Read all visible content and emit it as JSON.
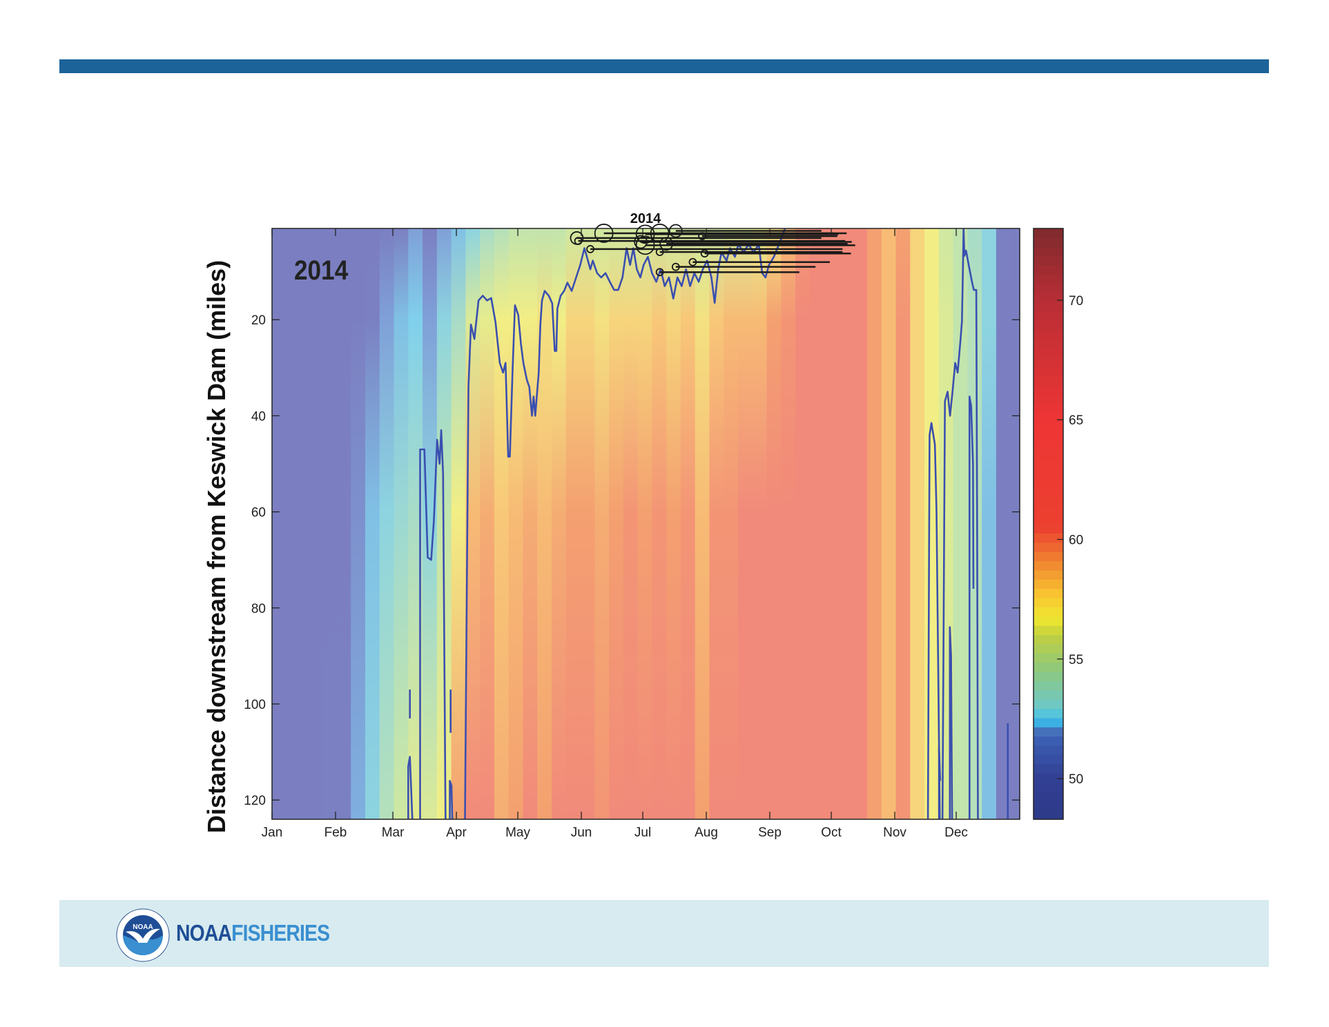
{
  "header": {
    "bar_color": "#1c6399"
  },
  "chart_data": {
    "type": "heatmap",
    "title": "2014",
    "annotation": "2014",
    "ylabel": "Distance downstream from Keswick Dam (miles)",
    "xlabel": "",
    "xlim": [
      0,
      365
    ],
    "ylim": [
      1,
      124
    ],
    "y_reversed": true,
    "x_ticks": [
      {
        "day": 0,
        "label": "Jan"
      },
      {
        "day": 31,
        "label": "Feb"
      },
      {
        "day": 59,
        "label": "Mar"
      },
      {
        "day": 90,
        "label": "Apr"
      },
      {
        "day": 120,
        "label": "May"
      },
      {
        "day": 151,
        "label": "Jun"
      },
      {
        "day": 181,
        "label": "Jul"
      },
      {
        "day": 212,
        "label": "Aug"
      },
      {
        "day": 243,
        "label": "Sep"
      },
      {
        "day": 273,
        "label": "Oct"
      },
      {
        "day": 304,
        "label": "Nov"
      },
      {
        "day": 334,
        "label": "Dec"
      }
    ],
    "y_ticks": [
      {
        "value": 20,
        "label": "20"
      },
      {
        "value": 40,
        "label": "40"
      },
      {
        "value": 60,
        "label": "60"
      },
      {
        "value": 80,
        "label": "80"
      },
      {
        "value": 100,
        "label": "100"
      },
      {
        "value": 120,
        "label": "120"
      }
    ],
    "colorbar": {
      "range": [
        48.3,
        73
      ],
      "ticks": [
        {
          "value": 50,
          "label": "50"
        },
        {
          "value": 55,
          "label": "55"
        },
        {
          "value": 60,
          "label": "60"
        },
        {
          "value": 65,
          "label": "65"
        },
        {
          "value": 70,
          "label": "70"
        }
      ]
    },
    "heatmap": {
      "distances": [
        1,
        20,
        60,
        124
      ],
      "days": [
        0,
        7,
        14,
        21,
        28,
        35,
        42,
        49,
        56,
        63,
        70,
        77,
        84,
        91,
        98,
        105,
        112,
        119,
        126,
        133,
        140,
        147,
        154,
        161,
        168,
        175,
        182,
        189,
        196,
        203,
        210,
        217,
        224,
        231,
        238,
        245,
        252,
        259,
        266,
        273,
        280,
        287,
        294,
        301,
        308,
        315,
        322,
        329,
        336,
        343,
        350,
        357,
        364
      ],
      "values": [
        [
          49,
          49,
          49,
          49
        ],
        [
          49,
          49,
          49,
          49.2
        ],
        [
          49,
          49,
          49,
          49.3
        ],
        [
          49,
          49,
          49,
          49.5
        ],
        [
          49,
          49,
          49.3,
          50
        ],
        [
          49,
          49,
          49.5,
          49.8
        ],
        [
          49,
          49.3,
          50.5,
          51.5
        ],
        [
          49.2,
          50,
          52,
          53
        ],
        [
          49.5,
          51,
          53,
          54.5
        ],
        [
          50,
          52,
          53.5,
          55.5
        ],
        [
          51,
          52.5,
          54,
          56.5
        ],
        [
          50,
          51,
          53,
          56
        ],
        [
          51,
          53,
          55,
          57
        ],
        [
          52,
          54,
          57,
          60
        ],
        [
          53,
          56,
          59,
          61
        ],
        [
          54,
          56.5,
          59.5,
          61
        ],
        [
          54.5,
          57,
          58.5,
          59.5
        ],
        [
          55,
          57,
          59,
          60
        ],
        [
          55,
          57,
          59.5,
          61
        ],
        [
          55,
          57.5,
          59,
          60
        ],
        [
          55,
          57,
          59.5,
          61
        ],
        [
          55.5,
          58,
          60,
          61
        ],
        [
          55.5,
          58,
          60,
          61
        ],
        [
          55.5,
          57.5,
          59.5,
          60.5
        ],
        [
          55.5,
          58,
          60,
          61
        ],
        [
          55.5,
          58,
          60.5,
          61
        ],
        [
          55.5,
          58,
          60,
          61
        ],
        [
          55.5,
          58.5,
          60.5,
          61
        ],
        [
          55.5,
          58,
          60,
          61
        ],
        [
          55.5,
          58.5,
          60.5,
          61
        ],
        [
          55.5,
          57.5,
          59,
          60
        ],
        [
          55.5,
          58.5,
          60.5,
          61
        ],
        [
          56,
          59,
          60.5,
          61
        ],
        [
          56,
          59,
          61,
          61
        ],
        [
          56.5,
          59,
          61,
          61
        ],
        [
          57.5,
          60,
          61,
          61
        ],
        [
          59,
          60.5,
          61,
          61
        ],
        [
          60.5,
          61,
          61,
          61
        ],
        [
          61,
          61,
          61,
          61
        ],
        [
          61,
          61,
          61,
          61
        ],
        [
          61,
          61,
          61,
          61
        ],
        [
          61,
          61,
          61,
          61
        ],
        [
          60,
          60,
          60,
          60
        ],
        [
          59,
          59,
          59,
          59
        ],
        [
          60,
          60.5,
          60.5,
          60.5
        ],
        [
          58,
          58,
          58,
          58
        ],
        [
          57,
          57,
          57,
          57
        ],
        [
          55.5,
          56,
          56,
          56
        ],
        [
          55,
          55,
          55,
          55
        ],
        [
          54,
          54.5,
          54.5,
          54.5
        ],
        [
          53,
          53,
          52,
          52
        ],
        [
          50,
          49.5,
          49.5,
          49.5
        ],
        [
          49,
          49,
          49,
          49
        ]
      ]
    },
    "contour_color": "#3a4fb0",
    "contour_segments": [
      [
        [
          72.3,
          124
        ],
        [
          72.3,
          47
        ],
        [
          74.4,
          47
        ],
        [
          76.0,
          69.5
        ],
        [
          77.7,
          70
        ],
        [
          79,
          62
        ],
        [
          80.6,
          45
        ],
        [
          81.8,
          50
        ],
        [
          82.6,
          43
        ],
        [
          83.5,
          52
        ],
        [
          84.7,
          124
        ]
      ],
      [
        [
          94.2,
          124
        ],
        [
          95.9,
          34
        ],
        [
          97.1,
          21
        ],
        [
          98.8,
          24
        ],
        [
          100.8,
          16
        ],
        [
          102.9,
          15
        ],
        [
          105,
          16
        ],
        [
          107,
          15.5
        ],
        [
          109.1,
          20.5
        ],
        [
          111.2,
          29
        ],
        [
          112.8,
          31
        ],
        [
          114,
          29
        ],
        [
          115.3,
          48.5
        ],
        [
          116.1,
          48.5
        ],
        [
          117.4,
          31
        ],
        [
          118.6,
          17
        ],
        [
          120.2,
          19
        ],
        [
          121.5,
          25
        ],
        [
          122.7,
          29
        ],
        [
          124.4,
          32.5
        ],
        [
          125.6,
          34
        ],
        [
          126.9,
          40
        ],
        [
          127.7,
          36
        ],
        [
          128.5,
          40
        ],
        [
          130.2,
          31
        ],
        [
          131,
          21
        ],
        [
          131.8,
          16
        ],
        [
          133.1,
          14
        ],
        [
          135.1,
          15
        ],
        [
          136.8,
          16.6
        ],
        [
          138,
          26.5
        ],
        [
          138.8,
          26.5
        ],
        [
          139.3,
          17.7
        ],
        [
          140.9,
          15
        ],
        [
          142.6,
          14
        ],
        [
          144.2,
          12.3
        ],
        [
          146.3,
          14
        ],
        [
          148.3,
          11.4
        ],
        [
          150.4,
          8.7
        ],
        [
          152.5,
          5.1
        ],
        [
          153.7,
          6.9
        ],
        [
          155.4,
          9.5
        ],
        [
          156.6,
          7.7
        ],
        [
          158.7,
          10.3
        ],
        [
          160.7,
          11.2
        ],
        [
          162.8,
          10.3
        ],
        [
          164.9,
          12.1
        ],
        [
          167,
          13.8
        ],
        [
          169,
          13.8
        ],
        [
          171.1,
          11.2
        ],
        [
          173.1,
          5.1
        ],
        [
          174.8,
          8.6
        ],
        [
          176.4,
          5.1
        ],
        [
          178.1,
          9.5
        ],
        [
          179.8,
          11.2
        ],
        [
          181.4,
          8.6
        ],
        [
          183.5,
          6.9
        ],
        [
          185.5,
          10.3
        ],
        [
          187.6,
          12.1
        ],
        [
          189.7,
          9.5
        ],
        [
          191.7,
          13
        ],
        [
          193.8,
          11.2
        ],
        [
          195.9,
          15.6
        ],
        [
          197.9,
          11.2
        ],
        [
          200,
          13
        ],
        [
          202.1,
          9.5
        ],
        [
          204.1,
          13
        ],
        [
          206.2,
          10.3
        ],
        [
          208.3,
          12.1
        ],
        [
          210.3,
          9.5
        ],
        [
          212.4,
          7.7
        ],
        [
          214.5,
          11.2
        ],
        [
          216.1,
          16.5
        ],
        [
          217.8,
          9.5
        ],
        [
          219.4,
          6
        ],
        [
          221.9,
          7.7
        ],
        [
          223.6,
          5.1
        ],
        [
          226,
          6.9
        ],
        [
          227.7,
          4.3
        ],
        [
          230.2,
          6
        ],
        [
          232.6,
          4.3
        ],
        [
          235.1,
          6
        ],
        [
          237.6,
          4.3
        ],
        [
          239.3,
          10.3
        ],
        [
          240.9,
          11.2
        ],
        [
          242.6,
          8.6
        ],
        [
          245,
          6.9
        ],
        [
          247.5,
          4.3
        ],
        [
          249.2,
          2.5
        ],
        [
          250.4,
          1
        ]
      ],
      [
        [
          320.2,
          124
        ],
        [
          321,
          44
        ],
        [
          321.9,
          41.5
        ],
        [
          323.6,
          46
        ],
        [
          324.4,
          60
        ],
        [
          326,
          124
        ]
      ],
      [
        [
          327.3,
          124
        ],
        [
          328.5,
          37
        ],
        [
          329.8,
          35
        ],
        [
          331,
          40
        ],
        [
          332.2,
          35
        ],
        [
          333.5,
          29
        ],
        [
          334.7,
          31
        ],
        [
          336,
          24.7
        ],
        [
          336.8,
          20.4
        ],
        [
          337.2,
          11.6
        ],
        [
          337.6,
          1
        ]
      ],
      [
        [
          337.6,
          1
        ],
        [
          338,
          6.7
        ],
        [
          338.8,
          5.6
        ],
        [
          340.1,
          8.6
        ],
        [
          341.7,
          12.1
        ],
        [
          342.6,
          13.8
        ],
        [
          343.8,
          13.8
        ],
        [
          344.2,
          60
        ],
        [
          344.6,
          124
        ]
      ],
      [
        [
          340.5,
          124
        ],
        [
          340.5,
          36
        ],
        [
          341.3,
          38
        ],
        [
          342.2,
          50
        ],
        [
          342.4,
          76
        ]
      ],
      [
        [
          66.5,
          124
        ],
        [
          66.5,
          113
        ],
        [
          67.3,
          111
        ],
        [
          68.5,
          124
        ]
      ],
      [
        [
          67.3,
          97
        ],
        [
          67.3,
          103
        ]
      ],
      [
        [
          87.2,
          97
        ],
        [
          87.2,
          106
        ]
      ],
      [
        [
          86.8,
          124
        ],
        [
          86.8,
          116
        ],
        [
          87.6,
          117
        ],
        [
          88,
          124
        ]
      ],
      [
        [
          330.9,
          124
        ],
        [
          330.9,
          84
        ],
        [
          331.5,
          90
        ],
        [
          332,
          124
        ]
      ],
      [
        [
          325.6,
          124
        ],
        [
          325.6,
          109
        ],
        [
          326.2,
          116
        ]
      ],
      [
        [
          359.2,
          124
        ],
        [
          359.2,
          104
        ]
      ]
    ],
    "markers": [
      {
        "day": 148.8,
        "mile": 3.0,
        "end_day": 268.2,
        "size": 2
      },
      {
        "day": 149.5,
        "mile": 3.6,
        "end_day": 279.8,
        "size": 1
      },
      {
        "day": 162,
        "mile": 2.0,
        "end_day": 274.4,
        "size": 3
      },
      {
        "day": 155.4,
        "mile": 5.3,
        "end_day": 278.5,
        "size": 1
      },
      {
        "day": 182.2,
        "mile": 2.2,
        "end_day": 276.5,
        "size": 3
      },
      {
        "day": 189.3,
        "mile": 2.0,
        "end_day": 280.5,
        "size": 3
      },
      {
        "day": 197.1,
        "mile": 1.5,
        "end_day": 268.2,
        "size": 2
      },
      {
        "day": 182.2,
        "mile": 4.5,
        "end_day": 284.7,
        "size": 3
      },
      {
        "day": 189.3,
        "mile": 5.9,
        "end_day": 278.5,
        "size": 1
      },
      {
        "day": 211.2,
        "mile": 6.2,
        "end_day": 282.6,
        "size": 1
      },
      {
        "day": 205.4,
        "mile": 8.0,
        "end_day": 272.3,
        "size": 1
      },
      {
        "day": 197.1,
        "mile": 9.0,
        "end_day": 265.3,
        "size": 1
      },
      {
        "day": 189.3,
        "mile": 10.1,
        "end_day": 257.4,
        "size": 1
      },
      {
        "day": 180,
        "mile": 3.8,
        "end_day": 283,
        "size": 2
      },
      {
        "day": 192.5,
        "mile": 4.2,
        "end_day": 281,
        "size": 2
      },
      {
        "day": 210,
        "mile": 2.6,
        "end_day": 276,
        "size": 1
      }
    ]
  },
  "footer": {
    "seal_text": "NOAA",
    "brand_primary": "NOAA",
    "brand_secondary": "FISHERIES"
  }
}
